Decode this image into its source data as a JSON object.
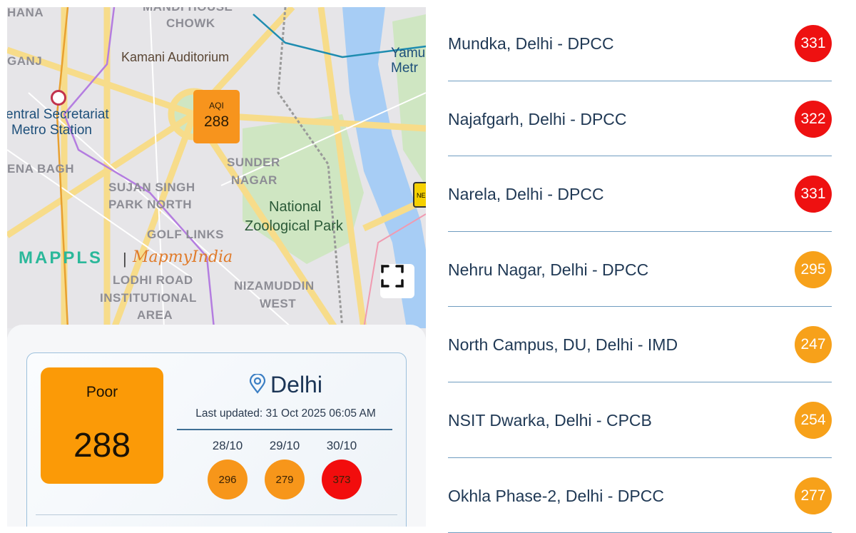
{
  "map": {
    "labels": {
      "hana": "HANA",
      "mandi_house": "MANDI HOUSE",
      "chowk": "CHOWK",
      "ganj": "GANJ",
      "kamani": "Kamani Auditorium",
      "central_sec_1": "entral Secretariat",
      "central_sec_2": "Metro Station",
      "yamuna_1": "Yamu",
      "yamuna_2": "Metr",
      "sunder_1": "SUNDER",
      "sunder_2": "NAGAR",
      "ena_bagh": "ENA BAGH",
      "sujan_1": "SUJAN SINGH",
      "sujan_2": "PARK NORTH",
      "zoo_1": "National",
      "zoo_2": "Zoological Park",
      "golf": "GOLF LINKS",
      "lodhi_1": "LODHI ROAD",
      "lodhi_2": "INSTITUTIONAL",
      "lodhi_3": "AREA",
      "nizam_1": "NIZAMUDDIN",
      "nizam_2": "WEST",
      "nh": "NE"
    },
    "marker": {
      "label": "AQI",
      "value": "288",
      "color": "#f7941d"
    },
    "brand": {
      "mappls": "MAPPLS",
      "separator": "|",
      "mapmyindia": "MapmyIndia"
    },
    "fullscreen_icon": "fullscreen-icon"
  },
  "summary": {
    "category": "Poor",
    "aqi": "288",
    "category_color": "#fb9a07",
    "city": "Delhi",
    "location_icon": "location-pin-icon",
    "last_updated": "Last updated: 31 Oct 2025 06:05 AM",
    "history": [
      {
        "date": "28/10",
        "value": "296",
        "color": "#f7961a"
      },
      {
        "date": "29/10",
        "value": "279",
        "color": "#f7961a"
      },
      {
        "date": "30/10",
        "value": "373",
        "color": "#f20d0d"
      }
    ]
  },
  "stations": [
    {
      "name": "Mundka, Delhi - DPCC",
      "aqi": "331",
      "color": "#ee1111"
    },
    {
      "name": "Najafgarh, Delhi - DPCC",
      "aqi": "322",
      "color": "#ee1111"
    },
    {
      "name": "Narela, Delhi - DPCC",
      "aqi": "331",
      "color": "#ee1111"
    },
    {
      "name": "Nehru Nagar, Delhi - DPCC",
      "aqi": "295",
      "color": "#f7a11a"
    },
    {
      "name": "North Campus, DU, Delhi - IMD",
      "aqi": "247",
      "color": "#f7a11a"
    },
    {
      "name": "NSIT Dwarka, Delhi - CPCB",
      "aqi": "254",
      "color": "#f7a11a"
    },
    {
      "name": "Okhla Phase-2, Delhi - DPCC",
      "aqi": "277",
      "color": "#f7a11a"
    }
  ]
}
